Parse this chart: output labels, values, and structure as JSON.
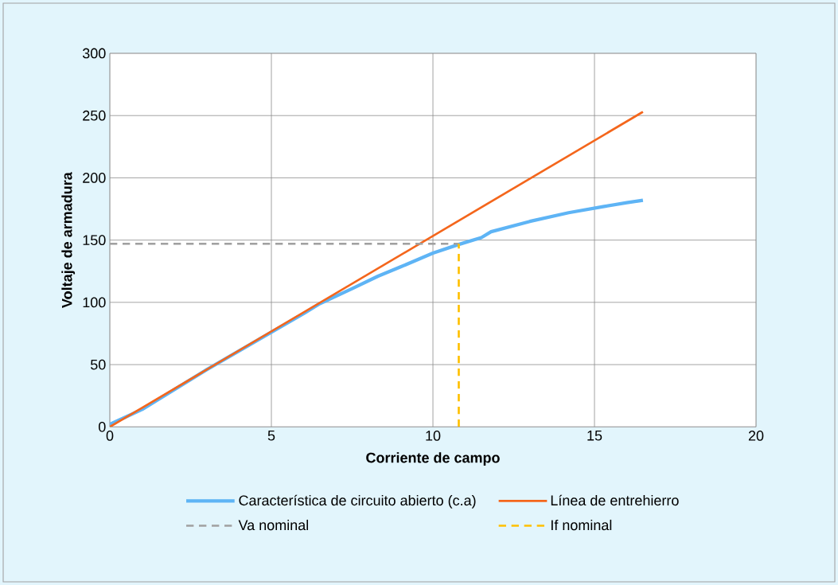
{
  "chart_data": {
    "type": "line",
    "xlabel": "Corriente de campo",
    "ylabel": "Voltaje de armadura",
    "xlim": [
      0,
      20
    ],
    "ylim": [
      0,
      300
    ],
    "xticks": [
      0,
      5,
      10,
      15,
      20
    ],
    "yticks": [
      0,
      50,
      100,
      150,
      200,
      250,
      300
    ],
    "grid": true,
    "legend": "bottom",
    "marker": "none",
    "series": [
      {
        "name": "Característica de circuito abierto (c.a)",
        "color": "#5eb4f5",
        "line_style": "solid",
        "x": [
          0,
          1,
          2,
          3,
          4,
          5,
          6,
          6.5,
          7.5,
          8.3,
          9,
          10,
          10.8,
          11.5,
          11.8,
          13,
          14.2,
          15.3,
          16,
          16.5
        ],
        "values": [
          2,
          14,
          30,
          46,
          61,
          76,
          91,
          99,
          111,
          121,
          128.5,
          139.5,
          146.5,
          152,
          156.7,
          165,
          172,
          177,
          180,
          182
        ]
      },
      {
        "name": "Línea de entrehierro",
        "color": "#f4661c",
        "line_style": "solid",
        "x": [
          0,
          16.5
        ],
        "values": [
          0,
          253
        ]
      },
      {
        "name": "Va nominal",
        "color": "#a0a0a0",
        "line_style": "dashed",
        "x": [
          0,
          10.8
        ],
        "values": [
          147,
          147
        ]
      },
      {
        "name": "If nominal",
        "color": "#ffc000",
        "line_style": "dashed",
        "x": [
          10.8,
          10.8
        ],
        "values": [
          0,
          147
        ]
      }
    ]
  }
}
